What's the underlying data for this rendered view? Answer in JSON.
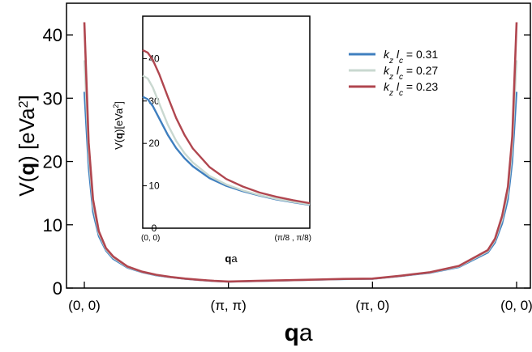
{
  "chart_data": [
    {
      "type": "line",
      "ylabel_prefix": "V(",
      "ylabel_bold": "q",
      "ylabel_suffix": ") [eVa",
      "ylabel_sup": "2",
      "ylabel_end": "]",
      "xlabel_bold": "q",
      "xlabel_suffix": "a",
      "ylim": [
        0,
        45
      ],
      "y_ticks": [
        0,
        10,
        20,
        30,
        40
      ],
      "x_ticks": [
        {
          "pos": 0,
          "label": "(0, 0)"
        },
        {
          "pos": 1,
          "label": "(π, π)"
        },
        {
          "pos": 2,
          "label": "(π, 0)"
        },
        {
          "pos": 3,
          "label": "(0, 0)"
        }
      ],
      "x": [
        0,
        0.03,
        0.06,
        0.1,
        0.15,
        0.2,
        0.3,
        0.4,
        0.5,
        0.6,
        0.7,
        0.8,
        0.9,
        1.0,
        1.2,
        1.4,
        1.6,
        1.8,
        2.0,
        2.2,
        2.4,
        2.6,
        2.8,
        2.85,
        2.9,
        2.94,
        2.97,
        3.0
      ],
      "series": [
        {
          "name": "k_z l_c = 0.31",
          "color": "#3f7fbf",
          "values": [
            31,
            19,
            12,
            8.2,
            5.9,
            4.6,
            3.2,
            2.5,
            2.0,
            1.7,
            1.45,
            1.25,
            1.1,
            1.0,
            1.1,
            1.2,
            1.3,
            1.4,
            1.45,
            1.9,
            2.4,
            3.3,
            5.6,
            7.2,
            10.2,
            14,
            20,
            31
          ]
        },
        {
          "name": "k_z l_c = 0.27",
          "color": "#c9d8d0",
          "values": [
            36,
            21,
            13,
            8.6,
            6.1,
            4.8,
            3.3,
            2.55,
            2.05,
            1.72,
            1.48,
            1.28,
            1.12,
            1.02,
            1.12,
            1.22,
            1.32,
            1.42,
            1.47,
            1.93,
            2.45,
            3.4,
            5.8,
            7.5,
            10.8,
            15,
            22,
            36
          ]
        },
        {
          "name": "k_z l_c = 0.23",
          "color": "#b0464f",
          "values": [
            42,
            23,
            14,
            9.0,
            6.3,
            5.0,
            3.4,
            2.6,
            2.1,
            1.75,
            1.5,
            1.3,
            1.14,
            1.04,
            1.14,
            1.24,
            1.34,
            1.44,
            1.5,
            1.96,
            2.5,
            3.5,
            6.0,
            7.8,
            11.4,
            16,
            24,
            42
          ]
        }
      ]
    },
    {
      "type": "line",
      "ylabel_prefix": "V(",
      "ylabel_bold": "q",
      "ylabel_suffix": ")[eVa",
      "ylabel_sup": "2",
      "ylabel_end": "]",
      "xlabel_bold": "q",
      "xlabel_suffix": "a",
      "ylim": [
        0,
        50
      ],
      "y_ticks": [
        0,
        10,
        20,
        30,
        40
      ],
      "x_ticks": [
        {
          "pos": 0,
          "label": "(0, 0)"
        },
        {
          "pos": 1,
          "label": "(π/8 , π/8)"
        }
      ],
      "x": [
        0,
        0.03,
        0.06,
        0.1,
        0.15,
        0.2,
        0.25,
        0.3,
        0.4,
        0.5,
        0.6,
        0.7,
        0.8,
        0.9,
        1.0
      ],
      "series": [
        {
          "name": "k_z l_c = 0.31",
          "color": "#3f7fbf",
          "values": [
            31,
            30.4,
            28.8,
            25.8,
            22.0,
            18.9,
            16.5,
            14.6,
            11.8,
            10.0,
            8.7,
            7.7,
            6.8,
            6.1,
            5.5
          ]
        },
        {
          "name": "k_z l_c = 0.27",
          "color": "#c9d8d0",
          "values": [
            36,
            35.3,
            33.2,
            29.3,
            24.4,
            20.6,
            17.7,
            15.5,
            12.3,
            10.3,
            8.9,
            7.8,
            6.9,
            6.2,
            5.6
          ]
        },
        {
          "name": "k_z l_c = 0.23",
          "color": "#b0464f",
          "values": [
            42,
            41.4,
            39.7,
            36.2,
            31.0,
            26.0,
            22.0,
            18.8,
            14.4,
            11.6,
            9.8,
            8.4,
            7.4,
            6.6,
            5.9
          ]
        }
      ]
    }
  ],
  "legend": {
    "items": [
      {
        "k": "k",
        "k_sub": "z",
        "l": "l",
        "l_sub": "c",
        "value": " = 0.31",
        "color": "#3f7fbf"
      },
      {
        "k": "k",
        "k_sub": "z",
        "l": "l",
        "l_sub": "c",
        "value": " = 0.27",
        "color": "#c9d8d0"
      },
      {
        "k": "k",
        "k_sub": "z",
        "l": "l",
        "l_sub": "c",
        "value": " = 0.23",
        "color": "#b0464f"
      }
    ]
  }
}
